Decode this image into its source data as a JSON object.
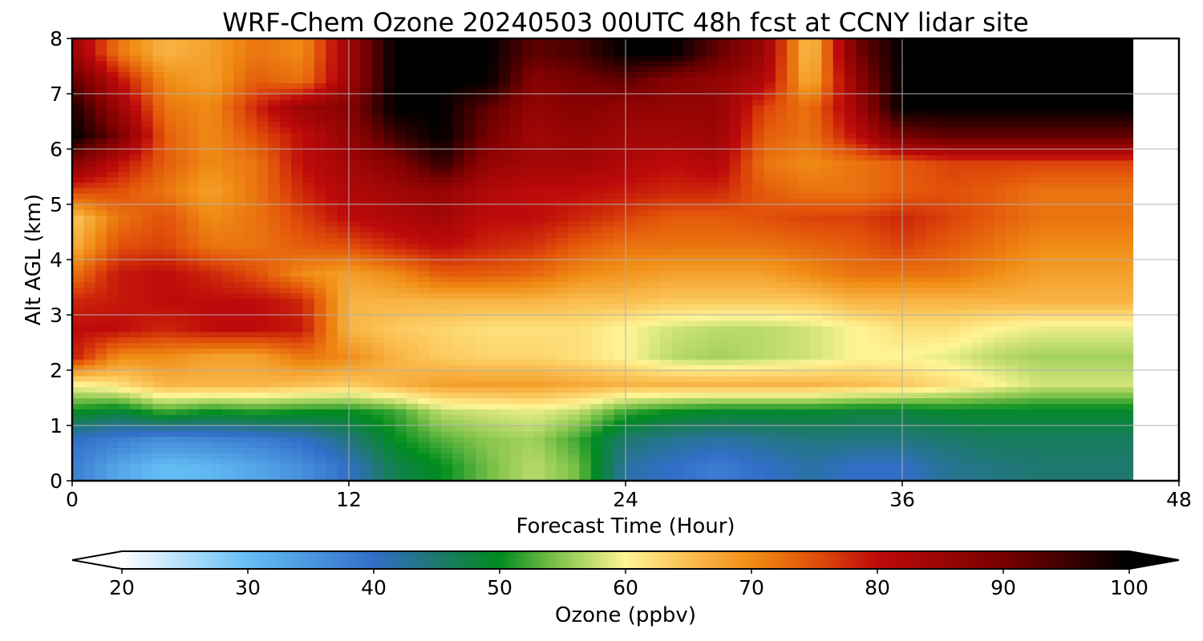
{
  "chart_data": {
    "type": "heatmap",
    "title": "WRF-Chem Ozone  20240503 00UTC 48h fcst at CCNY lidar site",
    "xlabel": "Forecast Time (Hour)",
    "ylabel": "Alt AGL (km)",
    "xlim": [
      0,
      48
    ],
    "ylim": [
      0,
      8
    ],
    "xticks": [
      "0",
      "12",
      "24",
      "36",
      "48"
    ],
    "yticks": [
      "0",
      "1",
      "2",
      "3",
      "4",
      "5",
      "6",
      "7",
      "8"
    ],
    "grid": true,
    "colorbar": {
      "label": "Ozone  (ppbv)",
      "range": [
        20,
        100
      ],
      "extend": "both",
      "ticks": [
        "20",
        "30",
        "40",
        "50",
        "60",
        "70",
        "80",
        "90",
        "100"
      ]
    },
    "data_end_hour": 46,
    "x": [
      0,
      2,
      4,
      6,
      8,
      10,
      12,
      14,
      16,
      18,
      20,
      22,
      24,
      26,
      28,
      30,
      32,
      34,
      36,
      38,
      40,
      42,
      44
    ],
    "y": [
      0.25,
      0.75,
      1.25,
      1.75,
      2.25,
      2.75,
      3.25,
      3.75,
      4.25,
      4.75,
      5.25,
      5.75,
      6.25,
      6.75,
      7.25,
      7.75
    ],
    "z": [
      [
        38,
        33,
        30,
        31,
        33,
        36,
        40,
        47,
        50,
        54,
        57,
        54,
        42,
        40,
        38,
        40,
        42,
        40,
        40,
        43,
        44,
        45,
        45
      ],
      [
        40,
        38,
        36,
        37,
        38,
        40,
        44,
        50,
        53,
        55,
        56,
        52,
        45,
        43,
        42,
        43,
        44,
        44,
        44,
        45,
        46,
        46,
        46
      ],
      [
        50,
        48,
        52,
        50,
        51,
        50,
        50,
        52,
        57,
        58,
        59,
        57,
        52,
        50,
        49,
        49,
        49,
        48,
        48,
        49,
        49,
        49,
        49
      ],
      [
        60,
        62,
        66,
        66,
        66,
        65,
        64,
        66,
        68,
        68,
        68,
        67,
        66,
        66,
        66,
        66,
        66,
        65,
        64,
        62,
        60,
        58,
        58
      ],
      [
        79,
        70,
        70,
        68,
        68,
        72,
        70,
        66,
        64,
        63,
        63,
        62,
        60,
        57,
        56,
        57,
        58,
        60,
        60,
        59,
        57,
        56,
        56
      ],
      [
        80,
        80,
        78,
        80,
        80,
        79,
        66,
        64,
        63,
        62,
        62,
        62,
        60,
        58,
        57,
        57,
        58,
        60,
        62,
        62,
        60,
        59,
        59
      ],
      [
        78,
        79,
        80,
        80,
        80,
        78,
        66,
        66,
        66,
        66,
        66,
        65,
        65,
        64,
        64,
        64,
        64,
        66,
        66,
        66,
        66,
        66,
        66
      ],
      [
        72,
        79,
        80,
        78,
        75,
        70,
        68,
        70,
        74,
        74,
        73,
        70,
        69,
        68,
        68,
        68,
        70,
        72,
        72,
        72,
        70,
        68,
        68
      ],
      [
        66,
        75,
        76,
        72,
        72,
        74,
        75,
        78,
        80,
        78,
        77,
        74,
        72,
        72,
        72,
        72,
        73,
        74,
        76,
        74,
        72,
        70,
        70
      ],
      [
        64,
        72,
        75,
        70,
        72,
        76,
        80,
        82,
        84,
        80,
        80,
        78,
        76,
        74,
        74,
        75,
        76,
        76,
        78,
        76,
        74,
        72,
        72
      ],
      [
        76,
        75,
        72,
        68,
        72,
        78,
        82,
        84,
        86,
        82,
        80,
        80,
        79,
        78,
        78,
        74,
        72,
        72,
        74,
        75,
        74,
        72,
        72
      ],
      [
        88,
        80,
        74,
        70,
        72,
        80,
        84,
        88,
        96,
        86,
        84,
        84,
        82,
        80,
        82,
        72,
        70,
        72,
        74,
        76,
        76,
        76,
        76
      ],
      [
        100,
        90,
        74,
        70,
        75,
        80,
        86,
        95,
        100,
        90,
        84,
        86,
        84,
        84,
        85,
        74,
        72,
        80,
        90,
        92,
        92,
        92,
        92
      ],
      [
        98,
        85,
        72,
        70,
        78,
        85,
        88,
        100,
        100,
        92,
        86,
        88,
        86,
        86,
        86,
        76,
        72,
        84,
        100,
        100,
        100,
        100,
        100
      ],
      [
        92,
        80,
        70,
        68,
        74,
        72,
        84,
        100,
        100,
        100,
        88,
        90,
        92,
        88,
        86,
        82,
        66,
        86,
        100,
        100,
        100,
        100,
        100
      ],
      [
        85,
        72,
        66,
        68,
        72,
        70,
        84,
        100,
        100,
        100,
        92,
        94,
        100,
        100,
        92,
        85,
        64,
        90,
        100,
        100,
        100,
        100,
        100
      ]
    ]
  }
}
